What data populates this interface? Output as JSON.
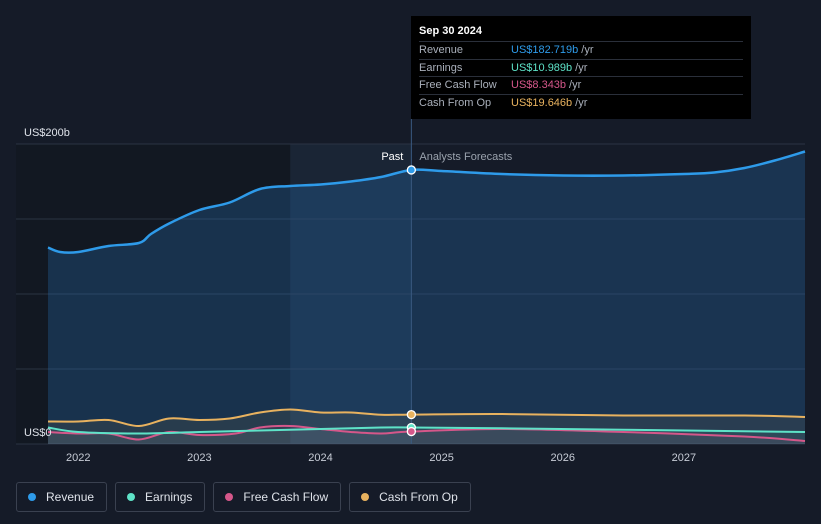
{
  "tooltip": {
    "date": "Sep 30 2024",
    "rows": [
      {
        "label": "Revenue",
        "value": "US$182.719b",
        "unit": "/yr",
        "color": "#2e9bea"
      },
      {
        "label": "Earnings",
        "value": "US$10.989b",
        "unit": "/yr",
        "color": "#5ee3c8"
      },
      {
        "label": "Free Cash Flow",
        "value": "US$8.343b",
        "unit": "/yr",
        "color": "#d5578a"
      },
      {
        "label": "Cash From Op",
        "value": "US$19.646b",
        "unit": "/yr",
        "color": "#e8b25f"
      }
    ]
  },
  "legend": [
    {
      "label": "Revenue",
      "color": "#2e9bea"
    },
    {
      "label": "Earnings",
      "color": "#5ee3c8"
    },
    {
      "label": "Free Cash Flow",
      "color": "#d5578a"
    },
    {
      "label": "Cash From Op",
      "color": "#e8b25f"
    }
  ],
  "chart_data": {
    "type": "line",
    "y_axis_labels": [
      "US$200b",
      "US$0"
    ],
    "ylim": [
      0,
      200
    ],
    "xlim": [
      2021.75,
      2028.0
    ],
    "x_tick_labels": [
      "2022",
      "2023",
      "2024",
      "2025",
      "2026",
      "2027"
    ],
    "past_label": "Past",
    "forecast_label": "Analysts Forecasts",
    "past_end": 2024.75,
    "highlight_band": [
      2023.75,
      2024.75
    ],
    "series": [
      {
        "name": "Revenue",
        "color": "#2e9bea",
        "x": [
          2021.75,
          2021.85,
          2022.0,
          2022.25,
          2022.5,
          2022.6,
          2022.75,
          2023.0,
          2023.25,
          2023.5,
          2023.75,
          2024.0,
          2024.25,
          2024.5,
          2024.75,
          2025.0,
          2025.5,
          2026.0,
          2026.5,
          2027.0,
          2027.25,
          2027.5,
          2027.75,
          2028.0
        ],
        "y": [
          131,
          128,
          128,
          132,
          134,
          140,
          147,
          156,
          161,
          170,
          172,
          173,
          175,
          178,
          182.7,
          182,
          180,
          179,
          179,
          180,
          181,
          184,
          189,
          195
        ]
      },
      {
        "name": "Earnings",
        "color": "#5ee3c8",
        "x": [
          2021.75,
          2022.0,
          2022.5,
          2023.0,
          2023.5,
          2024.0,
          2024.5,
          2024.75,
          2025.5,
          2026.5,
          2027.5,
          2028.0
        ],
        "y": [
          11,
          8,
          7,
          8,
          9,
          10,
          11,
          11,
          10.5,
          9.5,
          8.5,
          8
        ]
      },
      {
        "name": "Free Cash Flow",
        "color": "#d5578a",
        "x": [
          2021.75,
          2022.0,
          2022.25,
          2022.5,
          2022.75,
          2023.0,
          2023.3,
          2023.5,
          2023.75,
          2024.0,
          2024.25,
          2024.5,
          2024.75,
          2025.5,
          2026.5,
          2027.5,
          2028.0
        ],
        "y": [
          8,
          7,
          7,
          3,
          8,
          6,
          7,
          11,
          12,
          10,
          8,
          7,
          8.3,
          10,
          8,
          5,
          2
        ]
      },
      {
        "name": "Cash From Op",
        "color": "#e8b25f",
        "x": [
          2021.75,
          2022.0,
          2022.25,
          2022.5,
          2022.75,
          2023.0,
          2023.25,
          2023.5,
          2023.75,
          2024.0,
          2024.25,
          2024.5,
          2024.75,
          2025.5,
          2026.5,
          2027.5,
          2028.0
        ],
        "y": [
          15,
          15,
          16,
          12,
          17,
          16,
          17,
          21,
          23,
          21,
          21,
          19.5,
          19.6,
          20,
          19,
          19,
          18
        ]
      }
    ]
  }
}
